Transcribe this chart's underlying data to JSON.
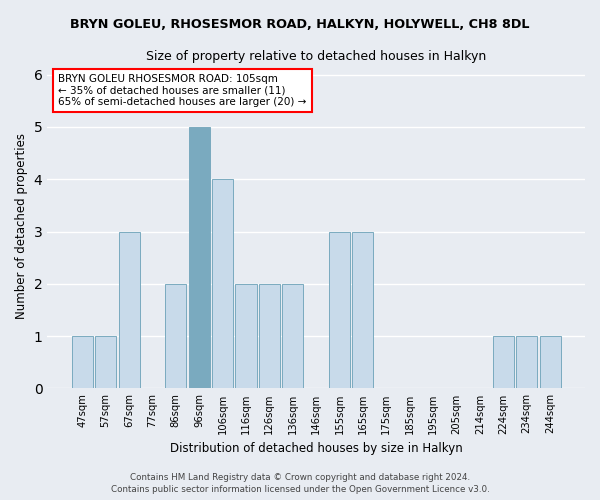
{
  "title": "BRYN GOLEU, RHOSESMOR ROAD, HALKYN, HOLYWELL, CH8 8DL",
  "subtitle": "Size of property relative to detached houses in Halkyn",
  "xlabel": "Distribution of detached houses by size in Halkyn",
  "ylabel": "Number of detached properties",
  "bar_color": "#c8daea",
  "bar_edge_color": "#7aaabf",
  "categories": [
    "47sqm",
    "57sqm",
    "67sqm",
    "77sqm",
    "86sqm",
    "96sqm",
    "106sqm",
    "116sqm",
    "126sqm",
    "136sqm",
    "146sqm",
    "155sqm",
    "165sqm",
    "175sqm",
    "185sqm",
    "195sqm",
    "205sqm",
    "214sqm",
    "224sqm",
    "234sqm",
    "244sqm"
  ],
  "values": [
    1,
    1,
    3,
    0,
    2,
    5,
    4,
    2,
    2,
    2,
    0,
    3,
    3,
    0,
    0,
    0,
    0,
    0,
    1,
    1,
    1
  ],
  "highlight_index": 5,
  "highlight_color": "#7aaabf",
  "ylim": [
    0,
    6.2
  ],
  "yticks": [
    0,
    1,
    2,
    3,
    4,
    5,
    6
  ],
  "annotation_title": "BRYN GOLEU RHOSESMOR ROAD: 105sqm",
  "annotation_line1": "← 35% of detached houses are smaller (11)",
  "annotation_line2": "65% of semi-detached houses are larger (20) →",
  "footer1": "Contains HM Land Registry data © Crown copyright and database right 2024.",
  "footer2": "Contains public sector information licensed under the Open Government Licence v3.0.",
  "background_color": "#e8ecf2",
  "plot_bg_color": "#e8ecf2"
}
